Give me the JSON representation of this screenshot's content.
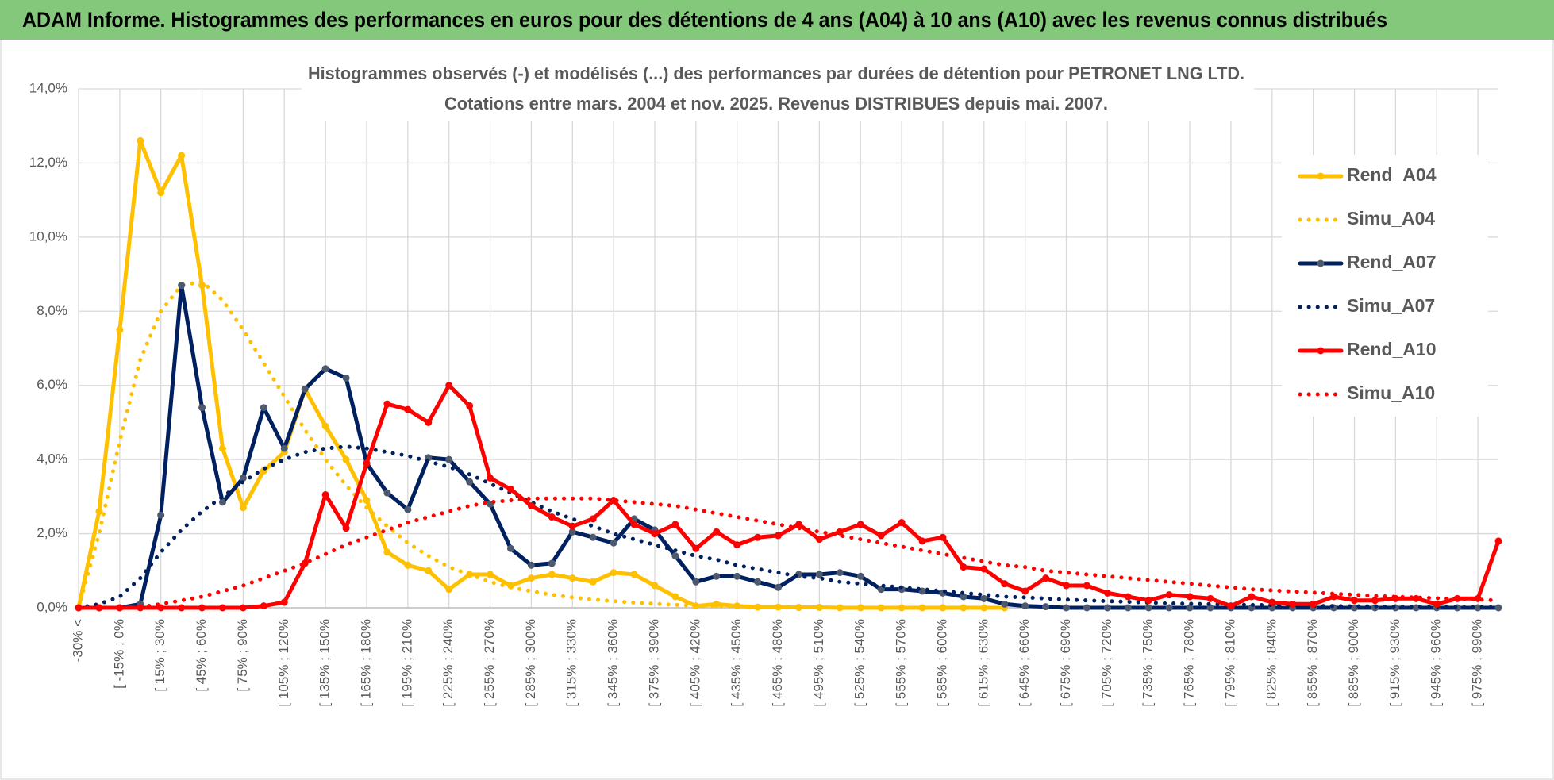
{
  "header": {
    "title": "ADAM Informe. Histogrammes des performances en euros pour des détentions de 4 ans (A04) à 10 ans (A10) avec les revenus connus distribués"
  },
  "chart_data": {
    "type": "line",
    "title": "Histogrammes observés (-) et modélisés (...) des performances par durées de détention pour PETRONET LNG LTD.",
    "subtitle": "Cotations entre mars. 2004  et nov. 2025.  Revenus DISTRIBUES depuis mai. 2007.",
    "categories": [
      "-30% <",
      null,
      "[ -15% ; 0%",
      null,
      "[ 15% ; 30%",
      null,
      "[ 45% ; 60%",
      null,
      "[ 75% ; 90%",
      null,
      "[ 105% ; 120%",
      null,
      "[ 135% ; 150%",
      null,
      "[ 165% ; 180%",
      null,
      "[ 195% ; 210%",
      null,
      "[ 225% ; 240%",
      null,
      "[ 255% ; 270%",
      null,
      "[ 285% ; 300%",
      null,
      "[ 315% ; 330%",
      null,
      "[ 345% ; 360%",
      null,
      "[ 375% ; 390%",
      null,
      "[ 405% ; 420%",
      null,
      "[ 435% ; 450%",
      null,
      "[ 465% ; 480%",
      null,
      "[ 495% ; 510%",
      null,
      "[ 525% ; 540%",
      null,
      "[ 555% ; 570%",
      null,
      "[ 585% ; 600%",
      null,
      "[ 615% ; 630%",
      null,
      "[ 645% ; 660%",
      null,
      "[ 675% ; 690%",
      null,
      "[ 705% ; 720%",
      null,
      "[ 735% ; 750%",
      null,
      "[ 765% ; 780%",
      null,
      "[ 795% ; 810%",
      null,
      "[ 825% ; 840%",
      null,
      "[ 855% ; 870%",
      null,
      "[ 885% ; 900%",
      null,
      "[ 915% ; 930%",
      null,
      "[ 945% ; 960%",
      null,
      "[ 975% ; 990%",
      null
    ],
    "series": [
      {
        "name": "Rend_A04",
        "color": "#FFC000",
        "style": "solid",
        "markers": true,
        "values": [
          0,
          2.6,
          7.5,
          12.6,
          11.2,
          12.2,
          8.7,
          4.3,
          2.7,
          3.7,
          4.2,
          5.9,
          4.9,
          4.0,
          2.9,
          1.5,
          1.15,
          1.0,
          0.5,
          0.9,
          0.9,
          0.6,
          0.8,
          0.9,
          0.8,
          0.7,
          0.95,
          0.9,
          0.6,
          0.3,
          0.05,
          0.1,
          0.05,
          0.02,
          0.02,
          0.01,
          0.01,
          0,
          0,
          0,
          0,
          0,
          0,
          0,
          0,
          0,
          null,
          null,
          null,
          null,
          null,
          null,
          null,
          null,
          null,
          null,
          null,
          null,
          null,
          null,
          null,
          null,
          null,
          null,
          null,
          null,
          null,
          null,
          null,
          null
        ]
      },
      {
        "name": "Simu_A04",
        "color": "#FFC000",
        "style": "dotted",
        "markers": false,
        "values": [
          0,
          2.0,
          4.5,
          6.7,
          8.0,
          8.7,
          8.8,
          8.3,
          7.5,
          6.6,
          5.7,
          4.8,
          4.0,
          3.3,
          2.7,
          2.2,
          1.75,
          1.4,
          1.1,
          0.9,
          0.7,
          0.55,
          0.45,
          0.35,
          0.28,
          0.22,
          0.18,
          0.14,
          0.11,
          0.08,
          0.06,
          0.05,
          0.04,
          0.03,
          null,
          null,
          null,
          null,
          null,
          null,
          null,
          null,
          null,
          null,
          null,
          null,
          null,
          null,
          null,
          null,
          null,
          null,
          null,
          null,
          null,
          null,
          null,
          null,
          null,
          null,
          null,
          null,
          null,
          null,
          null,
          null,
          null,
          null,
          null,
          null
        ]
      },
      {
        "name": "Rend_A07",
        "color": "#002060",
        "style": "solid",
        "markers": true,
        "marker_color": "#4d5a6e",
        "values": [
          0,
          0,
          0,
          0.1,
          2.5,
          8.7,
          5.4,
          2.85,
          3.5,
          5.4,
          4.3,
          5.9,
          6.45,
          6.2,
          3.9,
          3.1,
          2.65,
          4.05,
          4.0,
          3.4,
          2.8,
          1.6,
          1.15,
          1.2,
          2.05,
          1.9,
          1.75,
          2.4,
          2.1,
          1.4,
          0.7,
          0.85,
          0.85,
          0.7,
          0.55,
          0.9,
          0.9,
          0.95,
          0.85,
          0.5,
          0.5,
          0.45,
          0.4,
          0.3,
          0.25,
          0.1,
          0.05,
          0.03,
          0,
          0,
          0,
          0,
          0,
          0,
          0,
          0,
          0,
          0,
          0,
          0,
          0,
          0,
          0,
          0,
          0,
          0,
          0,
          0,
          0,
          0
        ]
      },
      {
        "name": "Simu_A07",
        "color": "#002060",
        "style": "dotted",
        "markers": false,
        "values": [
          0,
          0.1,
          0.3,
          0.8,
          1.5,
          2.1,
          2.6,
          3.0,
          3.4,
          3.75,
          4.0,
          4.2,
          4.3,
          4.35,
          4.3,
          4.2,
          4.1,
          3.95,
          3.8,
          3.6,
          3.35,
          3.1,
          2.85,
          2.6,
          2.4,
          2.2,
          2.0,
          1.85,
          1.7,
          1.55,
          1.4,
          1.3,
          1.15,
          1.05,
          0.95,
          0.85,
          0.8,
          0.7,
          0.65,
          0.6,
          0.55,
          0.5,
          0.45,
          0.4,
          0.35,
          0.3,
          0.28,
          0.25,
          0.22,
          0.2,
          0.18,
          0.16,
          0.14,
          0.12,
          0.11,
          0.1,
          0.09,
          0.08,
          0.07,
          0.06,
          0.05,
          0.05,
          0.04,
          0.04,
          0.03,
          0.03,
          0.03,
          0.02,
          0.02,
          0.02
        ]
      },
      {
        "name": "Rend_A10",
        "color": "#FF0000",
        "style": "solid",
        "markers": true,
        "values": [
          0,
          0,
          0,
          0,
          0,
          0,
          0,
          0,
          0,
          0.05,
          0.15,
          1.2,
          3.05,
          2.15,
          3.9,
          5.5,
          5.35,
          5.0,
          6.0,
          5.45,
          3.5,
          3.2,
          2.75,
          2.45,
          2.2,
          2.4,
          2.9,
          2.25,
          2.0,
          2.25,
          1.6,
          2.05,
          1.7,
          1.9,
          1.95,
          2.25,
          1.85,
          2.05,
          2.25,
          1.95,
          2.3,
          1.8,
          1.9,
          1.1,
          1.05,
          0.65,
          0.45,
          0.8,
          0.6,
          0.6,
          0.4,
          0.3,
          0.2,
          0.35,
          0.3,
          0.25,
          0.05,
          0.3,
          0.15,
          0.1,
          0.1,
          0.3,
          0.2,
          0.2,
          0.25,
          0.25,
          0.1,
          0.25,
          0.25,
          1.8
        ]
      },
      {
        "name": "Simu_A10",
        "color": "#FF0000",
        "style": "dotted",
        "markers": false,
        "values": [
          0,
          0,
          0,
          0.02,
          0.1,
          0.2,
          0.3,
          0.45,
          0.6,
          0.8,
          1.0,
          1.2,
          1.45,
          1.7,
          1.9,
          2.1,
          2.3,
          2.45,
          2.6,
          2.75,
          2.85,
          2.9,
          2.95,
          2.95,
          2.95,
          2.95,
          2.9,
          2.85,
          2.8,
          2.75,
          2.65,
          2.55,
          2.45,
          2.35,
          2.25,
          2.15,
          2.05,
          1.95,
          1.85,
          1.75,
          1.65,
          1.55,
          1.45,
          1.35,
          1.25,
          1.15,
          1.1,
          1.0,
          0.95,
          0.9,
          0.85,
          0.8,
          0.75,
          0.7,
          0.65,
          0.6,
          0.55,
          0.5,
          0.47,
          0.44,
          0.41,
          0.38,
          0.35,
          0.32,
          0.3,
          0.28,
          0.26,
          0.24,
          0.22,
          0.2
        ]
      }
    ],
    "ylim": [
      0,
      14
    ],
    "yticks": [
      {
        "value": 0,
        "label": "0,0%"
      },
      {
        "value": 2,
        "label": "2,0%"
      },
      {
        "value": 4,
        "label": "4,0%"
      },
      {
        "value": 6,
        "label": "6,0%"
      },
      {
        "value": 8,
        "label": "8,0%"
      },
      {
        "value": 10,
        "label": "10,0%"
      },
      {
        "value": 12,
        "label": "12,0%"
      },
      {
        "value": 14,
        "label": "14,0%"
      }
    ],
    "grid": true,
    "legend": "right"
  }
}
